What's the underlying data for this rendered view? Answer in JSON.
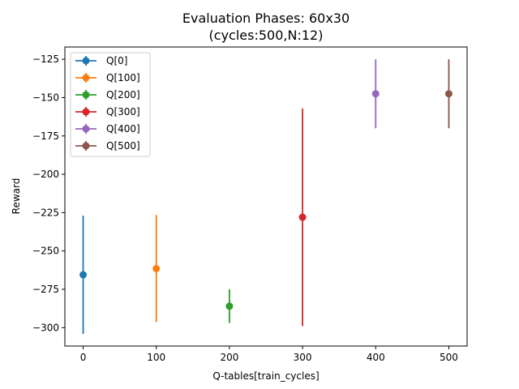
{
  "chart_data": {
    "type": "scatter",
    "title": "Evaluation Phases: 60x30",
    "subtitle": "(cycles:500,N:12)",
    "xlabel": "Q-tables[train_cycles]",
    "ylabel": "Reward",
    "xlim": [
      -25,
      525
    ],
    "ylim": [
      -312,
      -117
    ],
    "xticks": [
      0,
      100,
      200,
      300,
      400,
      500
    ],
    "xtick_labels": [
      "0",
      "100",
      "200",
      "300",
      "400",
      "500"
    ],
    "yticks": [
      -125,
      -150,
      -175,
      -200,
      -225,
      -250,
      -275,
      -300
    ],
    "ytick_labels": [
      "−125",
      "−150",
      "−175",
      "−200",
      "−225",
      "−250",
      "−275",
      "−300"
    ],
    "grid": false,
    "legend_position": "top-left",
    "series": [
      {
        "name": "Q[0]",
        "color": "#1f77b4",
        "x": 0,
        "y": -265.5,
        "y_low": -304,
        "y_high": -227
      },
      {
        "name": "Q[100]",
        "color": "#ff7f0e",
        "x": 100,
        "y": -261.5,
        "y_low": -296.5,
        "y_high": -226.5
      },
      {
        "name": "Q[200]",
        "color": "#2ca02c",
        "x": 200,
        "y": -286,
        "y_low": -297,
        "y_high": -275
      },
      {
        "name": "Q[300]",
        "color": "#d62728",
        "x": 300,
        "y": -228,
        "y_low": -299,
        "y_high": -157
      },
      {
        "name": "Q[400]",
        "color": "#9467bd",
        "x": 400,
        "y": -147.5,
        "y_low": -170,
        "y_high": -125
      },
      {
        "name": "Q[500]",
        "color": "#8c564b",
        "x": 500,
        "y": -147.5,
        "y_low": -170,
        "y_high": -125
      }
    ]
  }
}
